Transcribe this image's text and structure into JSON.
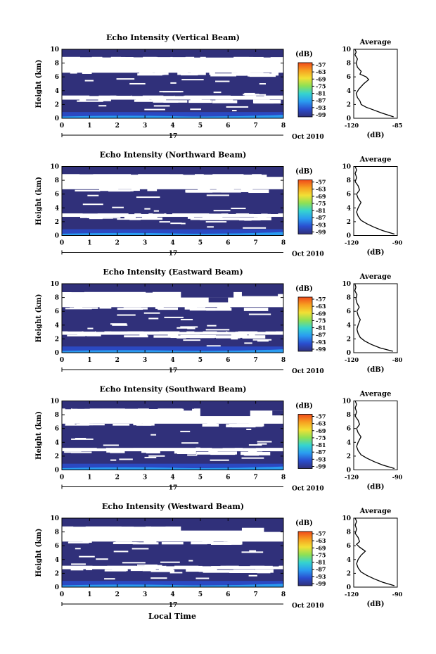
{
  "figure": {
    "date_label": "Oct 2010",
    "day_label": "17",
    "xlabel": "Local Time",
    "ylabel": "Height (km)",
    "colorbar_unit": "(dB)",
    "colorbar_ticks": [
      "-57",
      "-63",
      "-69",
      "-75",
      "-81",
      "-87",
      "-93",
      "-99"
    ],
    "colorbar_colors": [
      "#f04a1a",
      "#f7a020",
      "#f2e035",
      "#8ee055",
      "#35d4d0",
      "#2a9cf0",
      "#2a4ecf",
      "#30307a"
    ],
    "avg_title": "Average",
    "avg_xlabel": "(dB)",
    "echo_colors": {
      "cloud": "#30307a",
      "near_ground": "#2a4ecf",
      "surface": "#2a9cf0"
    }
  },
  "chart_data": [
    {
      "type": "heatmap",
      "title": "Echo Intensity (Vertical Beam)",
      "x_range": [
        0,
        8
      ],
      "x_ticks": [
        "0",
        "1",
        "2",
        "3",
        "4",
        "5",
        "6",
        "7",
        "8"
      ],
      "y_range": [
        0,
        10
      ],
      "y_ticks": [
        "0",
        "2",
        "4",
        "6",
        "8",
        "10"
      ],
      "clear_layers": [
        [
          2.7,
          3.3
        ],
        [
          6.6,
          8.9
        ]
      ],
      "upper_patches": [
        [
          0.6,
          1.0,
          9.4,
          9.9
        ],
        [
          2.2,
          2.6,
          9.5,
          10.0
        ],
        [
          3.2,
          3.8,
          9.0,
          9.5
        ],
        [
          4.3,
          5.7,
          9.4,
          10.0
        ],
        [
          5.2,
          6.2,
          8.8,
          9.3
        ],
        [
          6.3,
          7.2,
          9.2,
          10.0
        ],
        [
          7.6,
          8.0,
          9.3,
          10.0
        ]
      ],
      "average_profile": {
        "x_range": [
          -120,
          -85
        ],
        "x_ticks": [
          "-120",
          "-85"
        ],
        "y_range": [
          0,
          10
        ],
        "y_ticks": [
          "0",
          "2",
          "4",
          "6",
          "8",
          "10"
        ],
        "x": [
          -88,
          -98,
          -104,
          -110,
          -114,
          -115,
          -117,
          -118,
          -116,
          -112,
          -108,
          -110,
          -115,
          -114,
          -117,
          -118,
          -117,
          -119,
          -118,
          -119
        ],
        "y": [
          0.2,
          0.8,
          1.2,
          1.6,
          2.0,
          2.5,
          3.0,
          3.6,
          4.2,
          5.0,
          5.6,
          6.0,
          6.4,
          6.8,
          7.4,
          8.0,
          8.6,
          9.2,
          9.6,
          10.0
        ]
      }
    },
    {
      "type": "heatmap",
      "title": "Echo Intensity (Northward Beam)",
      "x_range": [
        0,
        8
      ],
      "x_ticks": [
        "0",
        "1",
        "2",
        "3",
        "4",
        "5",
        "6",
        "7",
        "8"
      ],
      "y_range": [
        0,
        10
      ],
      "y_ticks": [
        "0",
        "2",
        "4",
        "6",
        "8",
        "10"
      ],
      "clear_layers": [
        [
          2.7,
          3.2
        ],
        [
          6.7,
          8.9
        ]
      ],
      "upper_patches": [
        [
          0.7,
          0.9,
          9.3,
          9.7
        ],
        [
          2.8,
          3.2,
          9.2,
          9.6
        ],
        [
          4.4,
          4.8,
          8.8,
          9.3
        ],
        [
          5.5,
          6.5,
          9.0,
          9.8
        ],
        [
          6.2,
          7.8,
          9.2,
          10.0
        ],
        [
          7.4,
          8.0,
          8.5,
          9.4
        ]
      ],
      "average_profile": {
        "x_range": [
          -120,
          -90
        ],
        "x_ticks": [
          "-120",
          "-90"
        ],
        "y_range": [
          0,
          10
        ],
        "y_ticks": [
          "0",
          "2",
          "4",
          "6",
          "8",
          "10"
        ],
        "x": [
          -92,
          -100,
          -106,
          -111,
          -115,
          -117,
          -118,
          -117,
          -115,
          -117,
          -118,
          -116,
          -117,
          -119,
          -118,
          -119,
          -118,
          -119
        ],
        "y": [
          0.2,
          0.7,
          1.2,
          1.7,
          2.2,
          2.8,
          3.4,
          4.0,
          4.8,
          5.4,
          6.0,
          6.6,
          7.2,
          7.8,
          8.4,
          9.0,
          9.5,
          10.0
        ]
      }
    },
    {
      "type": "heatmap",
      "title": "Echo Intensity (Eastward Beam)",
      "x_range": [
        0,
        8
      ],
      "x_ticks": [
        "0",
        "1",
        "2",
        "3",
        "4",
        "5",
        "6",
        "7",
        "8"
      ],
      "y_range": [
        0,
        10
      ],
      "y_ticks": [
        "0",
        "2",
        "4",
        "6",
        "8",
        "10"
      ],
      "clear_layers": [
        [
          2.6,
          3.1
        ],
        [
          6.6,
          8.8
        ]
      ],
      "upper_patches": [
        [
          0.6,
          0.9,
          9.2,
          9.7
        ],
        [
          4.3,
          6.2,
          8.0,
          10.0
        ],
        [
          5.3,
          6.0,
          7.3,
          8.0
        ],
        [
          6.5,
          7.8,
          8.2,
          10.0
        ],
        [
          7.3,
          8.0,
          8.5,
          9.6
        ]
      ],
      "average_profile": {
        "x_range": [
          -120,
          -80
        ],
        "x_ticks": [
          "-120",
          "-80"
        ],
        "y_range": [
          0,
          10
        ],
        "y_ticks": [
          "0",
          "2",
          "4",
          "6",
          "8",
          "10"
        ],
        "x": [
          -84,
          -96,
          -104,
          -110,
          -114,
          -116,
          -117,
          -116,
          -114,
          -116,
          -117,
          -115,
          -117,
          -118,
          -117,
          -119,
          -118,
          -119
        ],
        "y": [
          0.2,
          0.7,
          1.2,
          1.7,
          2.2,
          2.8,
          3.4,
          4.0,
          4.8,
          5.4,
          6.0,
          6.6,
          7.2,
          7.8,
          8.4,
          9.0,
          9.5,
          10.0
        ]
      }
    },
    {
      "type": "heatmap",
      "title": "Echo Intensity (Southward Beam)",
      "x_range": [
        0,
        8
      ],
      "x_ticks": [
        "0",
        "1",
        "2",
        "3",
        "4",
        "5",
        "6",
        "7",
        "8"
      ],
      "y_range": [
        0,
        10
      ],
      "y_ticks": [
        "0",
        "2",
        "4",
        "6",
        "8",
        "10"
      ],
      "clear_layers": [
        [
          2.7,
          3.2
        ],
        [
          6.7,
          8.9
        ]
      ],
      "upper_patches": [
        [
          0.7,
          0.9,
          9.3,
          9.6
        ],
        [
          2.8,
          3.1,
          9.0,
          9.6
        ],
        [
          4.4,
          4.7,
          8.6,
          9.2
        ],
        [
          5.0,
          6.8,
          7.8,
          10.0
        ],
        [
          6.3,
          8.0,
          8.6,
          10.0
        ],
        [
          7.6,
          8.0,
          7.9,
          8.6
        ]
      ],
      "average_profile": {
        "x_range": [
          -120,
          -90
        ],
        "x_ticks": [
          "-120",
          "-90"
        ],
        "y_range": [
          0,
          10
        ],
        "y_ticks": [
          "0",
          "2",
          "4",
          "6",
          "8",
          "10"
        ],
        "x": [
          -92,
          -100,
          -106,
          -111,
          -115,
          -117,
          -118,
          -117,
          -115,
          -117,
          -118,
          -116,
          -117,
          -119,
          -118,
          -119,
          -118,
          -119
        ],
        "y": [
          0.2,
          0.7,
          1.2,
          1.7,
          2.2,
          2.8,
          3.4,
          4.0,
          4.8,
          5.4,
          6.0,
          6.6,
          7.2,
          7.8,
          8.4,
          9.0,
          9.5,
          10.0
        ]
      }
    },
    {
      "type": "heatmap",
      "title": "Echo Intensity (Westward Beam)",
      "x_range": [
        0,
        8
      ],
      "x_ticks": [
        "0",
        "1",
        "2",
        "3",
        "4",
        "5",
        "6",
        "7",
        "8"
      ],
      "y_range": [
        0,
        10
      ],
      "y_ticks": [
        "0",
        "2",
        "4",
        "6",
        "8",
        "10"
      ],
      "clear_layers": [
        [
          2.6,
          3.1
        ],
        [
          6.6,
          8.8
        ]
      ],
      "upper_patches": [
        [
          0.8,
          1.0,
          9.1,
          9.6
        ],
        [
          4.3,
          6.5,
          8.2,
          10.0
        ],
        [
          5.6,
          7.5,
          8.6,
          10.0
        ],
        [
          7.3,
          8.0,
          8.0,
          9.5
        ]
      ],
      "average_profile": {
        "x_range": [
          -120,
          -90
        ],
        "x_ticks": [
          "-120",
          "-90"
        ],
        "y_range": [
          0,
          10
        ],
        "y_ticks": [
          "0",
          "2",
          "4",
          "6",
          "8",
          "10"
        ],
        "x": [
          -92,
          -100,
          -106,
          -111,
          -115,
          -117,
          -118,
          -117,
          -115,
          -112,
          -116,
          -118,
          -116,
          -117,
          -119,
          -118,
          -119,
          -118,
          -119
        ],
        "y": [
          0.2,
          0.7,
          1.2,
          1.7,
          2.2,
          2.8,
          3.4,
          4.0,
          4.6,
          5.2,
          5.8,
          6.2,
          6.6,
          7.2,
          7.8,
          8.4,
          9.0,
          9.5,
          10.0
        ]
      }
    }
  ]
}
